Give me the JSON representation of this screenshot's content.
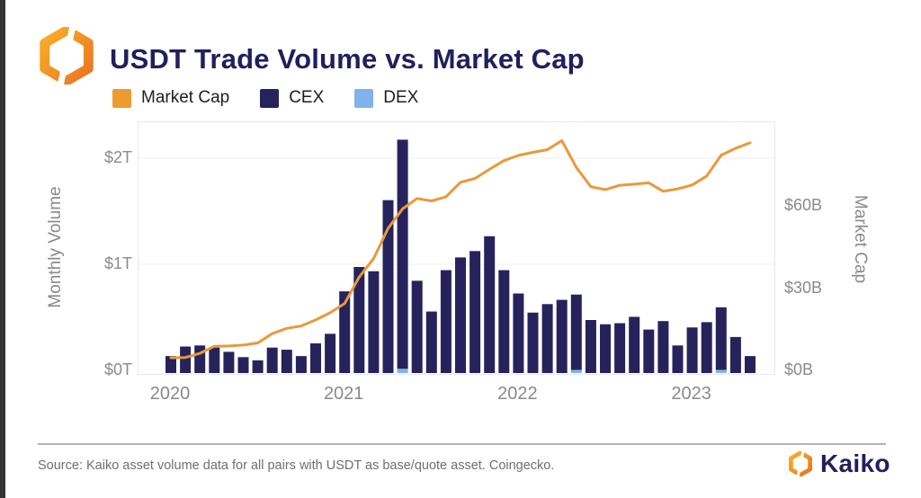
{
  "header": {
    "title": "USDT Trade Volume vs. Market Cap"
  },
  "legend": {
    "items": [
      {
        "label": "Market Cap",
        "color": "#EC9B31"
      },
      {
        "label": "CEX",
        "color": "#26235C"
      },
      {
        "label": "DEX",
        "color": "#7FB3EA"
      }
    ]
  },
  "footer": {
    "source": "Source: Kaiko asset volume data for all pairs with USDT as base/quote asset. Coingecko.",
    "brand": "Kaiko"
  },
  "chart_data": {
    "type": "bar",
    "subtype": "stacked-bars-with-line",
    "x": [
      "2020-01",
      "2020-02",
      "2020-03",
      "2020-04",
      "2020-05",
      "2020-06",
      "2020-07",
      "2020-08",
      "2020-09",
      "2020-10",
      "2020-11",
      "2020-12",
      "2021-01",
      "2021-02",
      "2021-03",
      "2021-04",
      "2021-05",
      "2021-06",
      "2021-07",
      "2021-08",
      "2021-09",
      "2021-10",
      "2021-11",
      "2021-12",
      "2022-01",
      "2022-02",
      "2022-03",
      "2022-04",
      "2022-05",
      "2022-06",
      "2022-07",
      "2022-08",
      "2022-09",
      "2022-10",
      "2022-11",
      "2022-12",
      "2023-01",
      "2023-02",
      "2023-03",
      "2023-04",
      "2023-05"
    ],
    "series": [
      {
        "name": "CEX",
        "type": "bar",
        "axis": "left",
        "unit": "trillion USD",
        "color": "#26235C",
        "values": [
          0.16,
          0.25,
          0.26,
          0.24,
          0.2,
          0.15,
          0.12,
          0.24,
          0.22,
          0.16,
          0.28,
          0.37,
          0.77,
          1.0,
          0.96,
          1.63,
          2.16,
          0.87,
          0.58,
          0.97,
          1.09,
          1.15,
          1.29,
          0.97,
          0.75,
          0.57,
          0.65,
          0.69,
          0.71,
          0.5,
          0.46,
          0.47,
          0.53,
          0.41,
          0.49,
          0.26,
          0.43,
          0.48,
          0.59,
          0.34,
          0.16
        ]
      },
      {
        "name": "DEX",
        "type": "bar",
        "axis": "left",
        "unit": "trillion USD",
        "color": "#7FB3EA",
        "values": [
          0,
          0,
          0,
          0,
          0,
          0,
          0,
          0,
          0,
          0,
          0,
          0,
          0,
          0,
          0,
          0,
          0.04,
          0,
          0,
          0,
          0,
          0,
          0,
          0,
          0,
          0,
          0,
          0,
          0.03,
          0,
          0,
          0,
          0,
          0,
          0,
          0,
          0,
          0,
          0.03,
          0,
          0
        ]
      },
      {
        "name": "Market Cap",
        "type": "line",
        "axis": "right",
        "unit": "billion USD",
        "color": "#E9993B",
        "values": [
          4.6,
          4.7,
          6.2,
          8.8,
          8.9,
          9.2,
          10.0,
          13.4,
          15.3,
          16.2,
          18.4,
          21.0,
          24.4,
          34.0,
          40.8,
          51.8,
          58.9,
          62.7,
          61.8,
          63.3,
          68.6,
          70.0,
          73.3,
          76.5,
          78.4,
          79.5,
          80.5,
          83.8,
          74.0,
          67.0,
          65.9,
          67.5,
          67.9,
          68.4,
          65.3,
          66.2,
          67.6,
          70.9,
          78.5,
          81.0,
          83.0
        ]
      }
    ],
    "title": "USDT Trade Volume vs. Market Cap",
    "left_axis": {
      "title": "Monthly Volume",
      "ticks": [
        "$0T",
        "$1T",
        "$2T"
      ],
      "tick_values": [
        0,
        1,
        2
      ],
      "range": [
        0,
        2.35
      ]
    },
    "right_axis": {
      "title": "Market Cap",
      "ticks": [
        "$0B",
        "$30B",
        "$60B"
      ],
      "tick_values": [
        0,
        30,
        60
      ],
      "range": [
        0,
        90
      ]
    },
    "x_ticks": {
      "labels": [
        "2020",
        "2021",
        "2022",
        "2023"
      ],
      "month_index": [
        0,
        12,
        24,
        36
      ]
    },
    "legend_position": "top",
    "grid": "horizontal"
  }
}
